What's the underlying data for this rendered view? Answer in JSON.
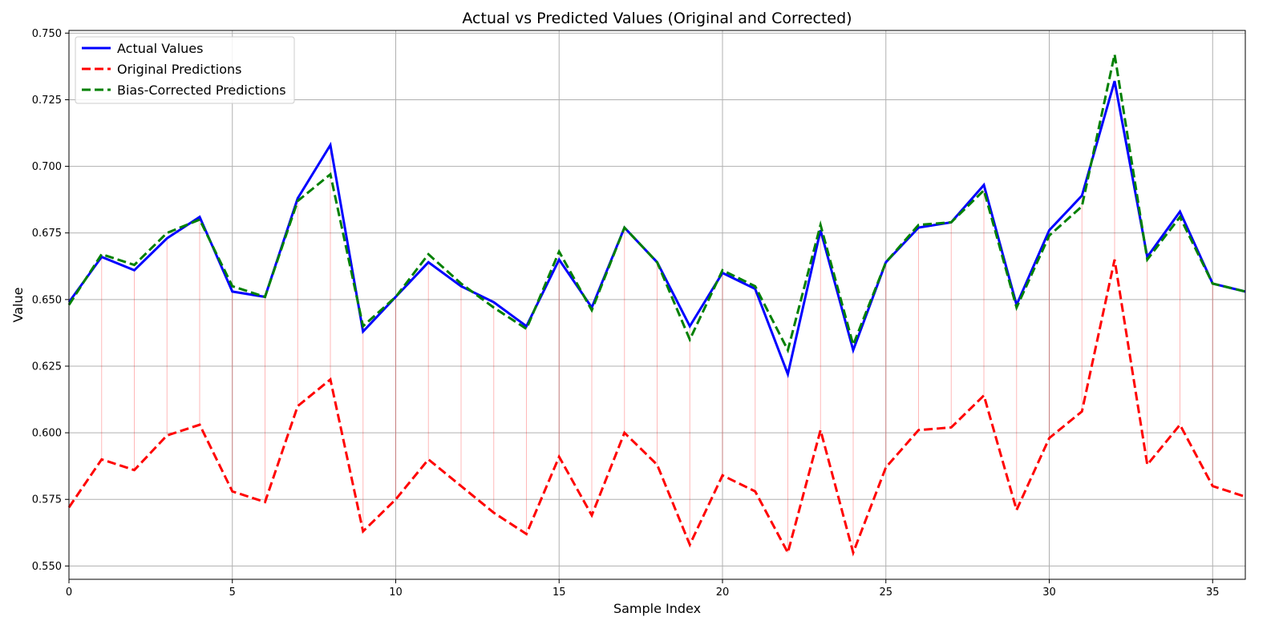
{
  "chart_data": {
    "type": "line",
    "title": "Actual vs Predicted Values (Original and Corrected)",
    "xlabel": "Sample Index",
    "ylabel": "Value",
    "xlim": [
      0,
      36
    ],
    "ylim": [
      0.545,
      0.751
    ],
    "xticks": [
      "0",
      "5",
      "10",
      "15",
      "20",
      "25",
      "30",
      "35"
    ],
    "xtick_values": [
      0,
      5,
      10,
      15,
      20,
      25,
      30,
      35
    ],
    "yticks": [
      "0.550",
      "0.575",
      "0.600",
      "0.625",
      "0.650",
      "0.675",
      "0.700",
      "0.725",
      "0.750"
    ],
    "ytick_values": [
      0.55,
      0.575,
      0.6,
      0.625,
      0.65,
      0.675,
      0.7,
      0.725,
      0.75
    ],
    "grid": true,
    "legend_position": "top-left",
    "residual_lines": {
      "between": [
        "Actual Values",
        "Original Predictions"
      ],
      "color": "#ff0000"
    },
    "x": [
      0,
      1,
      2,
      3,
      4,
      5,
      6,
      7,
      8,
      9,
      10,
      11,
      12,
      13,
      14,
      15,
      16,
      17,
      18,
      19,
      20,
      21,
      22,
      23,
      24,
      25,
      26,
      27,
      28,
      29,
      30,
      31,
      32,
      33,
      34,
      35,
      36
    ],
    "series": [
      {
        "name": "Actual Values",
        "color": "#0000ff",
        "style": "solid",
        "values": [
          0.649,
          0.666,
          0.661,
          0.673,
          0.681,
          0.653,
          0.651,
          0.688,
          0.708,
          0.638,
          0.651,
          0.664,
          0.655,
          0.649,
          0.64,
          0.665,
          0.647,
          0.677,
          0.664,
          0.64,
          0.66,
          0.654,
          0.622,
          0.676,
          0.631,
          0.664,
          0.677,
          0.679,
          0.693,
          0.648,
          0.676,
          0.689,
          0.732,
          0.666,
          0.683,
          0.656,
          0.653
        ]
      },
      {
        "name": "Original Predictions",
        "color": "#ff0000",
        "style": "dashed",
        "values": [
          0.572,
          0.59,
          0.586,
          0.599,
          0.603,
          0.578,
          0.574,
          0.61,
          0.62,
          0.563,
          0.575,
          0.59,
          0.58,
          0.57,
          0.562,
          0.591,
          0.569,
          0.6,
          0.588,
          0.558,
          0.584,
          0.578,
          0.555,
          0.601,
          0.555,
          0.587,
          0.601,
          0.602,
          0.614,
          0.571,
          0.598,
          0.608,
          0.665,
          0.588,
          0.603,
          0.58,
          0.576
        ]
      },
      {
        "name": "Bias-Corrected Predictions",
        "color": "#008000",
        "style": "dashed",
        "values": [
          0.648,
          0.667,
          0.663,
          0.675,
          0.68,
          0.655,
          0.651,
          0.687,
          0.697,
          0.64,
          0.651,
          0.667,
          0.656,
          0.647,
          0.639,
          0.668,
          0.646,
          0.677,
          0.664,
          0.635,
          0.661,
          0.655,
          0.631,
          0.678,
          0.633,
          0.664,
          0.678,
          0.679,
          0.691,
          0.647,
          0.674,
          0.685,
          0.742,
          0.665,
          0.681,
          0.656,
          0.653
        ]
      }
    ]
  }
}
